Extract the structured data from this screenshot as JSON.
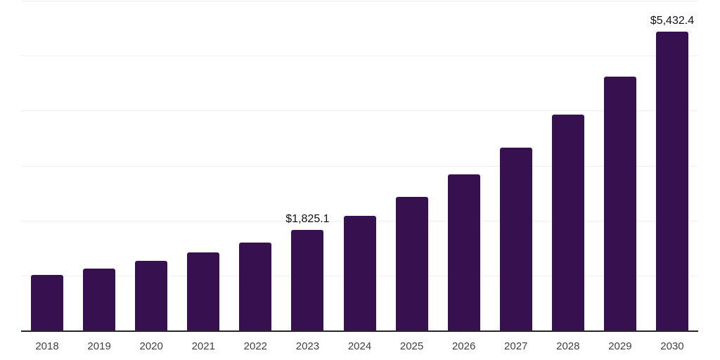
{
  "chart_data": {
    "type": "bar",
    "title": "",
    "xlabel": "",
    "ylabel": "",
    "categories": [
      "2018",
      "2019",
      "2020",
      "2021",
      "2022",
      "2023",
      "2024",
      "2025",
      "2026",
      "2027",
      "2028",
      "2029",
      "2030"
    ],
    "values": [
      1010.2,
      1126.4,
      1263.8,
      1419.5,
      1601.0,
      1825.1,
      2086.7,
      2432.9,
      2841.6,
      3327.8,
      3926.2,
      4619.5,
      5432.4
    ],
    "bar_labels": {
      "2023": "$1,825.1",
      "2030": "$5,432.4"
    },
    "ylim": [
      0,
      6000
    ],
    "gridline_step": 1000,
    "grid": "horizontal-only",
    "legend": "none",
    "y_axis_tick_labels": "none",
    "colors": {
      "bar": "#37104F",
      "axis_line": "#262626",
      "gridline": "#f0f0f0",
      "value_label": "#111111",
      "tick_label": "#3f3f3f",
      "background": "#ffffff"
    }
  }
}
